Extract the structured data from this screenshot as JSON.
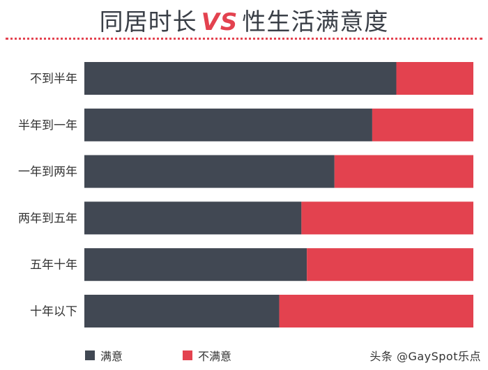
{
  "chart_data": {
    "type": "bar",
    "orientation": "horizontal",
    "stacked": true,
    "title_left": "同居时长",
    "title_vs": "VS",
    "title_right": "性生活满意度",
    "categories": [
      "不到半年",
      "半年到一年",
      "一年到两年",
      "两年到五年",
      "五年十年",
      "十年以下"
    ],
    "series": [
      {
        "name": "满意",
        "color": "#414853",
        "values": [
          80.2,
          74.0,
          64.3,
          55.8,
          57.2,
          50.1
        ]
      },
      {
        "name": "不满意",
        "color": "#e3424f",
        "values": [
          19.8,
          26.0,
          35.7,
          44.2,
          42.8,
          49.9
        ]
      }
    ],
    "xlim": [
      0,
      100
    ],
    "grid": false,
    "legend_position": "bottom-left"
  },
  "watermark": "头条 @GaySpot乐点"
}
